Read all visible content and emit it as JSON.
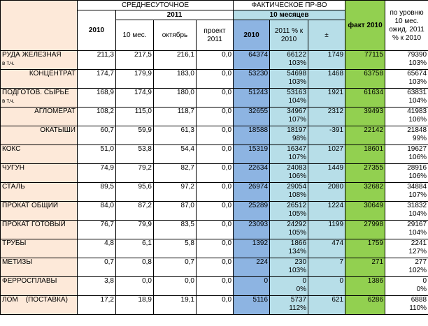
{
  "header": {
    "group_avg": "СРЕДНЕСУТОЧНОЕ",
    "year_2011": "2011",
    "col_2010": "2010",
    "col_10m": "10 мес.",
    "col_oct": "октябрь",
    "col_proj": "проект 2011",
    "group_fact": "ФАКТИЧЕСКОЕ ПР-ВО",
    "fact_10m": "10 месяцев",
    "fact_2010": "2010",
    "fact_2011": "2011 % к 2010",
    "fact_diff": "±",
    "fact_year": "факт 2010",
    "forecast": "по уровню 10 мес. ожид. 2011 % к 2010"
  },
  "table": {
    "rows": [
      {
        "label": "РУДА ЖЕЛЕЗНАЯ",
        "sub": "в т.ч.",
        "cells": [
          "211,3",
          "217,5",
          "216,1",
          "0,0",
          "64374",
          [
            "66122",
            "103%"
          ],
          "1749",
          "77115",
          [
            "79390",
            "103%"
          ]
        ]
      },
      {
        "label": "КОНЦЕНТРАТ",
        "indent": true,
        "cells": [
          "174,7",
          "179,9",
          "183,0",
          "0,0",
          "53230",
          [
            "54698",
            "103%"
          ],
          "1468",
          "63758",
          [
            "65674",
            "103%"
          ]
        ]
      },
      {
        "label": "ПОДГОТОВ. СЫРЬЕ",
        "sub": "в т.ч.",
        "cells": [
          "168,9",
          "174,9",
          "180,0",
          "0,0",
          "51243",
          [
            "53163",
            "104%"
          ],
          "1921",
          "61634",
          [
            "63831",
            "104%"
          ]
        ]
      },
      {
        "label": "АГЛОМЕРАТ",
        "indent": true,
        "cells": [
          "108,2",
          "115,0",
          "118,7",
          "0,0",
          "32655",
          [
            "34967",
            "107%"
          ],
          "2312",
          "39493",
          [
            "41983",
            "106%"
          ]
        ]
      },
      {
        "label": "ОКАТЫШИ",
        "indent": true,
        "cells": [
          "60,7",
          "59,9",
          "61,3",
          "0,0",
          "18588",
          [
            "18197",
            "98%"
          ],
          "-391",
          "22142",
          [
            "21848",
            "99%"
          ]
        ]
      },
      {
        "label": "КОКС",
        "cells": [
          "51,0",
          "53,8",
          "54,4",
          "0,0",
          "15319",
          [
            "16347",
            "107%"
          ],
          "1027",
          "18601",
          [
            "19627",
            "106%"
          ]
        ]
      },
      {
        "label": "ЧУГУН",
        "cells": [
          "74,9",
          "79,2",
          "82,7",
          "0,0",
          "22634",
          [
            "24083",
            "106%"
          ],
          "1449",
          "27355",
          [
            "28916",
            "106%"
          ]
        ]
      },
      {
        "label": "СТАЛЬ",
        "cells": [
          "89,5",
          "95,6",
          "97,2",
          "0,0",
          "26974",
          [
            "29054",
            "108%"
          ],
          "2080",
          "32682",
          [
            "34884",
            "107%"
          ]
        ]
      },
      {
        "label": "ПРОКАТ ОБЩИЙ",
        "cells": [
          "84,0",
          "87,2",
          "87,0",
          "0,0",
          "25289",
          [
            "26512",
            "105%"
          ],
          "1224",
          "30649",
          [
            "31832",
            "104%"
          ]
        ]
      },
      {
        "label": "ПРОКАТ ГОТОВЫЙ",
        "cells": [
          "76,7",
          "79,9",
          "83,5",
          "0,0",
          "23093",
          [
            "24292",
            "105%"
          ],
          "1199",
          "27998",
          [
            "29167",
            "104%"
          ]
        ]
      },
      {
        "label": "ТРУБЫ",
        "cells": [
          "4,8",
          "6,1",
          "5,8",
          "0,0",
          "1392",
          [
            "1866",
            "134%"
          ],
          "474",
          "1759",
          [
            "2241",
            "127%"
          ]
        ]
      },
      {
        "label": "МЕТИЗЫ",
        "cells": [
          "0,7",
          "0,8",
          "0,7",
          "0,0",
          "224",
          [
            "230",
            "103%"
          ],
          "7",
          "271",
          [
            "277",
            "102%"
          ]
        ]
      },
      {
        "label": "ФЕРРОСПЛАВЫ",
        "cells": [
          "3,8",
          "0,0",
          "0,0",
          "0,0",
          "0",
          [
            "0",
            "0%"
          ],
          "0",
          "1386",
          [
            "0",
            "0%"
          ]
        ]
      },
      {
        "label": "ЛОМ    (ПОСТАВКА)",
        "cells": [
          "17,2",
          "18,9",
          "19,1",
          "0,0",
          "5116",
          [
            "5737",
            "112%"
          ],
          "621",
          "6286",
          [
            "6888",
            "110%"
          ]
        ]
      }
    ]
  }
}
